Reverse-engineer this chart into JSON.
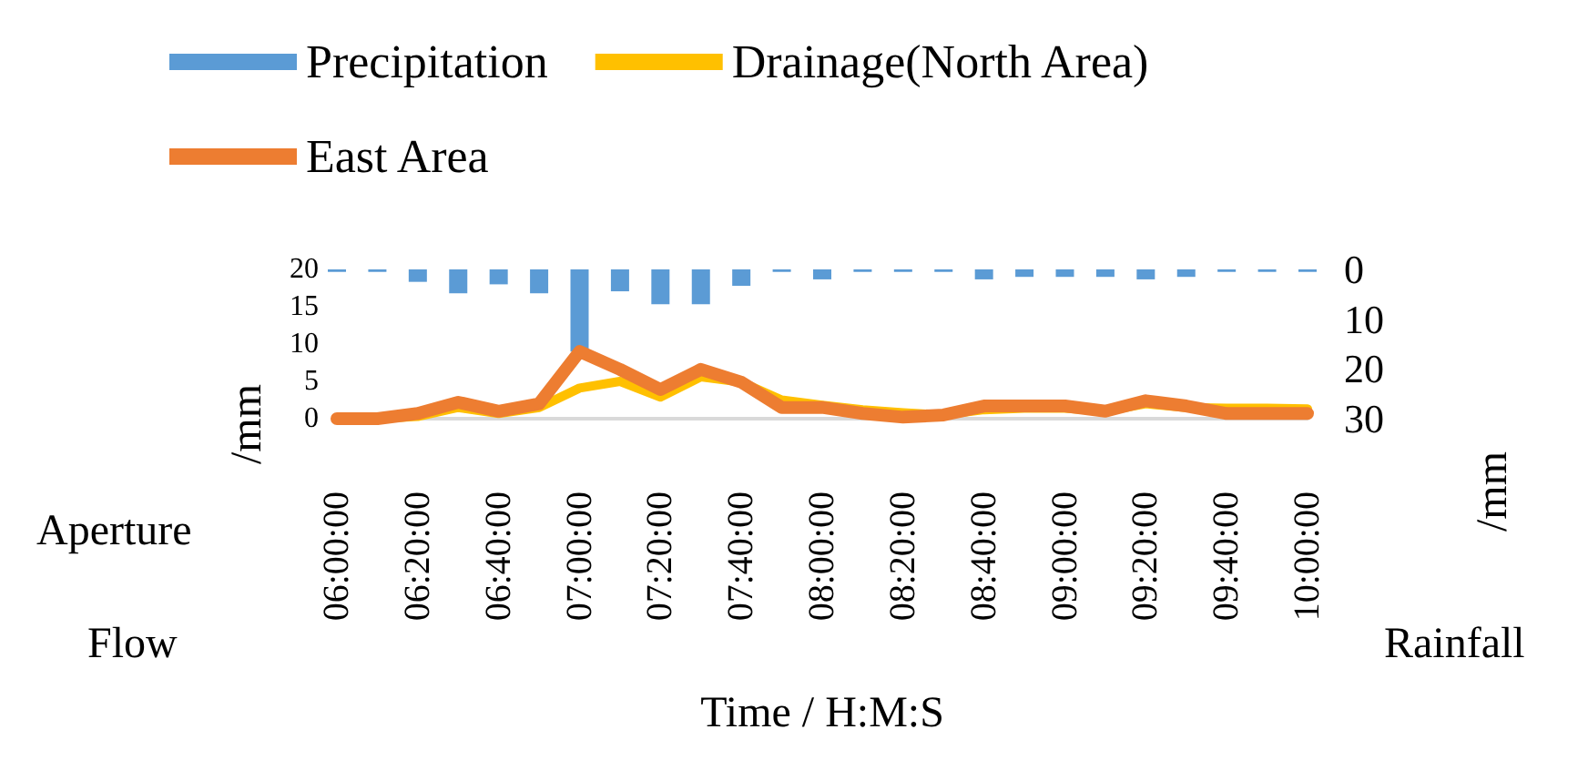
{
  "chart_data": {
    "type": "line",
    "xlabel": "Time / H:M:S",
    "ylabel": "Aperture Flow /mm",
    "y2label": "Rainfall /mm",
    "categories": [
      "06:00:00",
      null,
      "06:20:00",
      null,
      "06:40:00",
      null,
      "07:00:00",
      null,
      "07:20:00",
      null,
      "07:40:00",
      null,
      "08:00:00",
      null,
      "08:20:00",
      null,
      "08:40:00",
      null,
      "09:00:00",
      null,
      "09:20:00",
      null,
      "09:40:00",
      null,
      "10:00:00"
    ],
    "series": [
      {
        "name": "Precipitation",
        "type": "bar",
        "axis": "y2",
        "color": "#5b9bd5",
        "values": [
          0.5,
          0.5,
          2.5,
          4.8,
          3,
          4.8,
          16.5,
          4.4,
          7,
          7,
          3.3,
          0.5,
          2,
          0.5,
          0.5,
          0.5,
          2,
          1.5,
          1.5,
          1.5,
          2,
          1.5,
          0.5,
          0.5,
          0.5
        ]
      },
      {
        "name": "Drainage(North Area)",
        "color": "#ffc000",
        "values": [
          0,
          0,
          0.3,
          1.5,
          0.7,
          1.5,
          4.1,
          5,
          2.9,
          5.6,
          4.9,
          2.5,
          1.8,
          1.2,
          0.8,
          0.5,
          1.2,
          1.4,
          1.4,
          1,
          2,
          1.5,
          1.4,
          1.4,
          1.3
        ]
      },
      {
        "name": "East Area",
        "color": "#ed7d31",
        "values": [
          0,
          0,
          0.7,
          2.2,
          1,
          2,
          9,
          6.6,
          3.9,
          6.6,
          4.9,
          1.5,
          1.5,
          0.7,
          0.2,
          0.5,
          1.7,
          1.7,
          1.7,
          1,
          2.4,
          1.7,
          0.7,
          0.7,
          0.7
        ]
      }
    ],
    "ylim": [
      0,
      20
    ],
    "yticks": [
      0,
      5,
      10,
      15,
      20
    ],
    "y2lim": [
      30,
      0
    ],
    "y2ticks": [
      0,
      10,
      20,
      30
    ],
    "grid": false,
    "legend": "top",
    "marker": "none",
    "line_style": "solid"
  }
}
